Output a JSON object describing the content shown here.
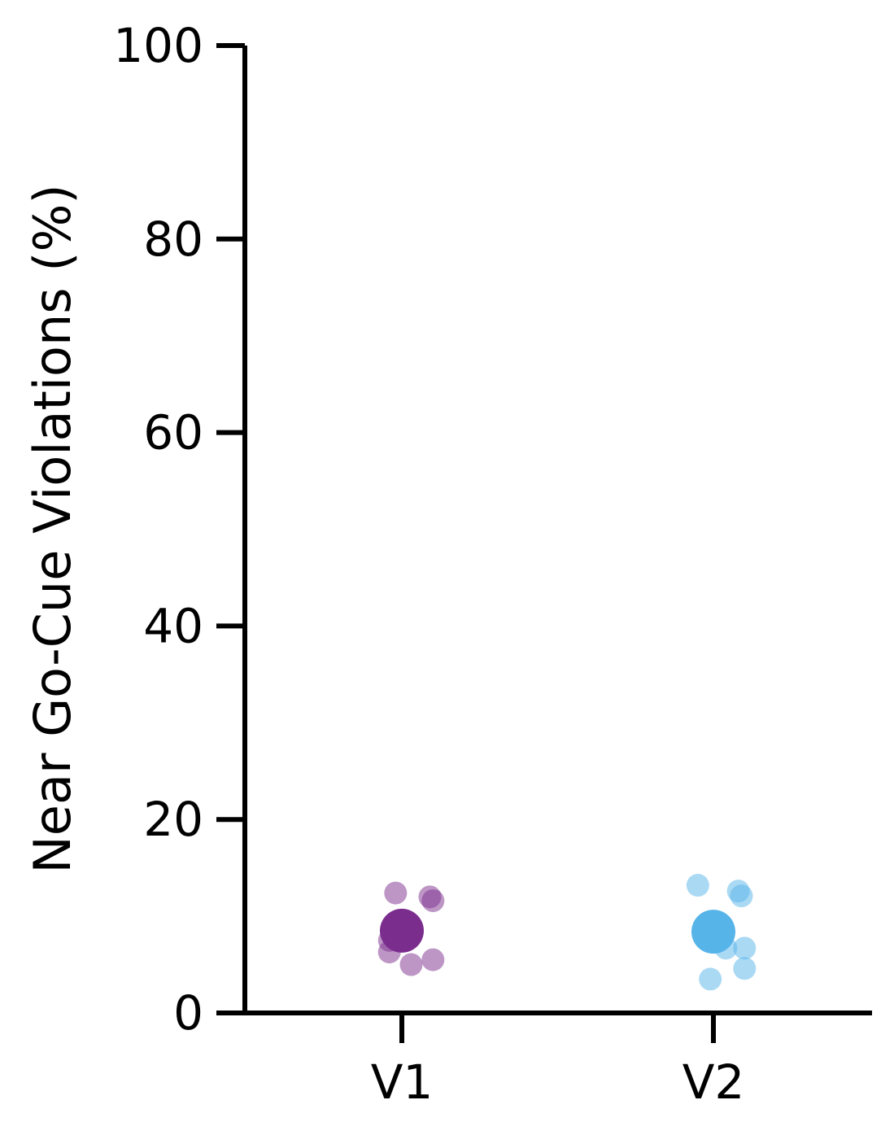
{
  "chart_data": {
    "type": "scatter",
    "title": "",
    "xlabel": "",
    "ylabel": "Near Go-Cue Violations (%)",
    "categories": [
      "V1",
      "V2"
    ],
    "ylim": [
      0,
      100
    ],
    "yticks": [
      0,
      20,
      40,
      60,
      80,
      100
    ],
    "grid": false,
    "legend": "none",
    "series": [
      {
        "category": "V1",
        "color": "#7b2d8e",
        "mean": 8.5,
        "points": [
          {
            "jitter": -0.02,
            "y": 12.4
          },
          {
            "jitter": 0.09,
            "y": 12.0
          },
          {
            "jitter": 0.1,
            "y": 11.6
          },
          {
            "jitter": -0.04,
            "y": 7.5
          },
          {
            "jitter": -0.04,
            "y": 6.3
          },
          {
            "jitter": 0.1,
            "y": 5.5
          },
          {
            "jitter": 0.03,
            "y": 5.0
          }
        ]
      },
      {
        "category": "V2",
        "color": "#56b4e9",
        "mean": 8.4,
        "points": [
          {
            "jitter": -0.05,
            "y": 13.2
          },
          {
            "jitter": 0.08,
            "y": 12.6
          },
          {
            "jitter": 0.09,
            "y": 12.1
          },
          {
            "jitter": 0.04,
            "y": 6.7
          },
          {
            "jitter": 0.1,
            "y": 6.7
          },
          {
            "jitter": 0.1,
            "y": 4.6
          },
          {
            "jitter": -0.01,
            "y": 3.5
          }
        ]
      }
    ]
  }
}
